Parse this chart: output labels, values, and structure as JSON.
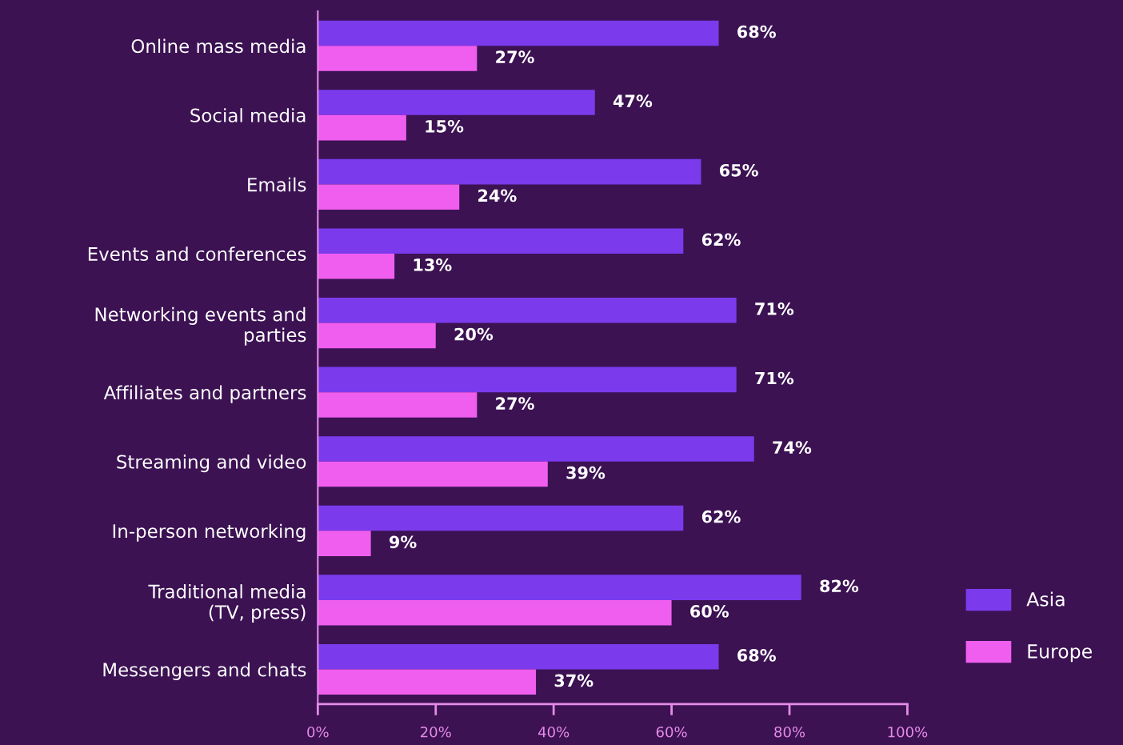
{
  "chart_data": {
    "type": "bar",
    "orientation": "horizontal",
    "categories": [
      "Online mass media",
      "Social media",
      "Emails",
      "Events and conferences",
      "Networking events and\nparties",
      "Affiliates and partners",
      "Streaming and video",
      "In-person networking",
      "Traditional media\n(TV, press)",
      "Messengers and chats"
    ],
    "series": [
      {
        "name": "Asia",
        "color": "#7c3aed",
        "values": [
          68,
          47,
          65,
          62,
          71,
          71,
          74,
          62,
          82,
          68
        ],
        "value_labels": [
          "68%",
          "47%",
          "65%",
          "62%",
          "71%",
          "71%",
          "74%",
          "62%",
          "82%",
          "68%"
        ]
      },
      {
        "name": "Europe",
        "color": "#f05ef0",
        "values": [
          27,
          15,
          24,
          13,
          20,
          27,
          39,
          9,
          60,
          37
        ],
        "value_labels": [
          "27%",
          "15%",
          "24%",
          "13%",
          "20%",
          "27%",
          "39%",
          "9%",
          "60%",
          "37%"
        ]
      }
    ],
    "xlim": [
      0,
      100
    ],
    "xticks": [
      {
        "value": 0,
        "label": "0%"
      },
      {
        "value": 20,
        "label": "20%"
      },
      {
        "value": 40,
        "label": "40%"
      },
      {
        "value": 60,
        "label": "60%"
      },
      {
        "value": 80,
        "label": "80%"
      },
      {
        "value": 100,
        "label": "100%"
      }
    ],
    "grid": false,
    "legend": "right"
  }
}
